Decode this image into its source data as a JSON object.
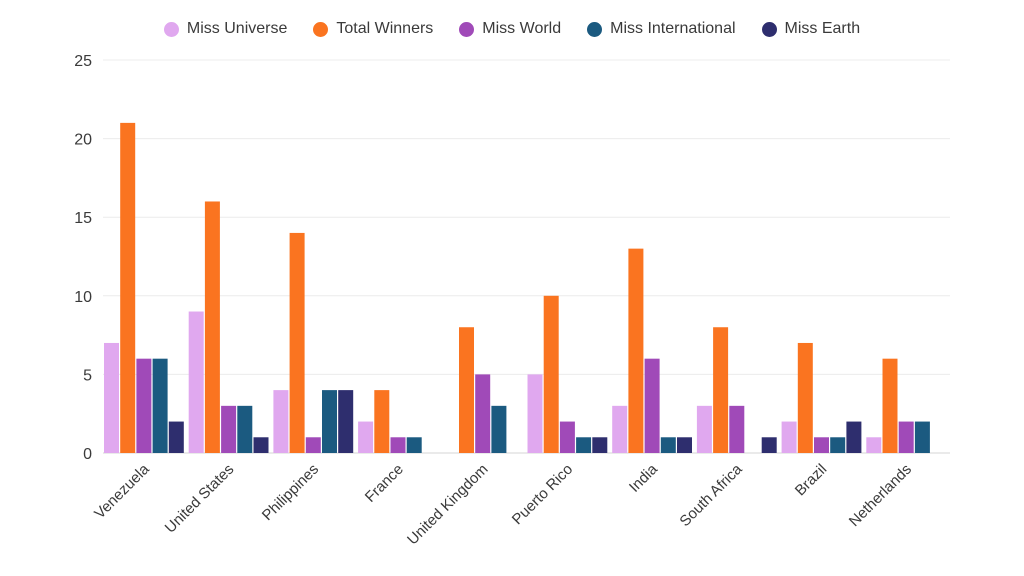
{
  "chart_data": {
    "type": "bar",
    "title": "",
    "xlabel": "",
    "ylabel": "",
    "ylim": [
      0,
      25
    ],
    "yticks": [
      0,
      5,
      10,
      15,
      20,
      25
    ],
    "grid": true,
    "legend_position": "top-center",
    "categories": [
      "Venezuela",
      "United States",
      "Philippines",
      "France",
      "United Kingdom",
      "Puerto Rico",
      "India",
      "South Africa",
      "Brazil",
      "Netherlands"
    ],
    "series": [
      {
        "name": "Miss Universe",
        "color": "#e0a8ef",
        "values": [
          7,
          9,
          4,
          2,
          0,
          5,
          3,
          3,
          2,
          1
        ]
      },
      {
        "name": "Total Winners",
        "color": "#fa7420",
        "values": [
          21,
          16,
          14,
          4,
          8,
          10,
          13,
          8,
          7,
          6
        ]
      },
      {
        "name": "Miss World",
        "color": "#a04ab8",
        "values": [
          6,
          3,
          1,
          1,
          5,
          2,
          6,
          3,
          1,
          2
        ]
      },
      {
        "name": "Miss International",
        "color": "#1b5a80",
        "values": [
          6,
          3,
          4,
          1,
          3,
          1,
          1,
          0,
          1,
          2
        ]
      },
      {
        "name": "Miss Earth",
        "color": "#2e2e6e",
        "values": [
          2,
          1,
          4,
          0,
          0,
          1,
          1,
          1,
          2,
          0
        ]
      }
    ]
  }
}
